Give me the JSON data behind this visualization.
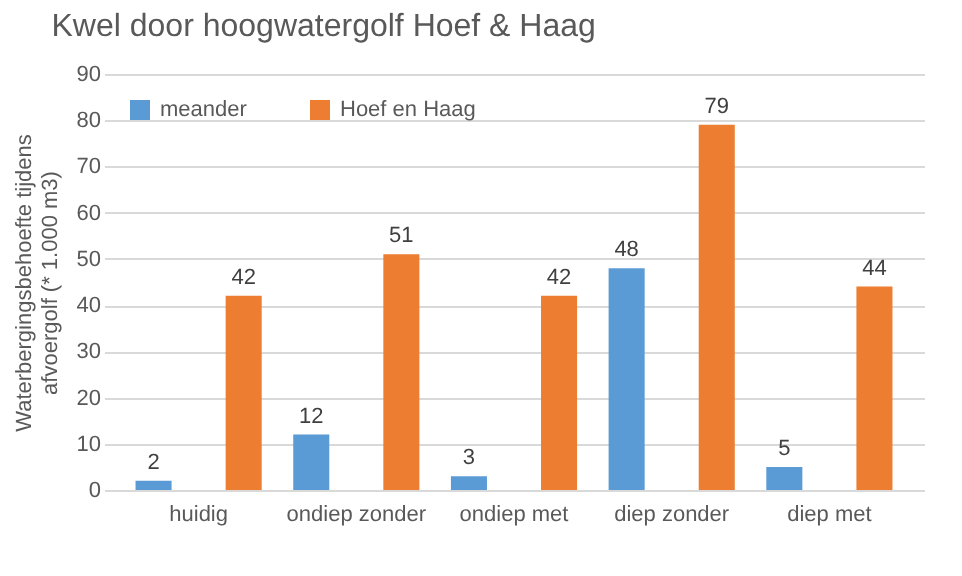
{
  "chart_data": {
    "type": "bar",
    "title": "Kwel door hoogwatergolf Hoef & Haag",
    "ylabel": "Waterbergingsbehoefte tijdens afvoergolf (* 1.000 m3)",
    "categories": [
      "huidig",
      "ondiep zonder",
      "ondiep met",
      "diep zonder",
      "diep met"
    ],
    "series": [
      {
        "name": "meander",
        "color": "#5b9bd5",
        "values": [
          2,
          12,
          3,
          48,
          5
        ]
      },
      {
        "name": "Hoef en Haag",
        "color": "#ed7d31",
        "values": [
          42,
          51,
          42,
          79,
          44
        ]
      }
    ],
    "ylim": [
      0,
      90
    ],
    "yticks": [
      0,
      10,
      20,
      30,
      40,
      50,
      60,
      70,
      80,
      90
    ],
    "grid": "y",
    "legend": "top left",
    "data_labels": true
  }
}
